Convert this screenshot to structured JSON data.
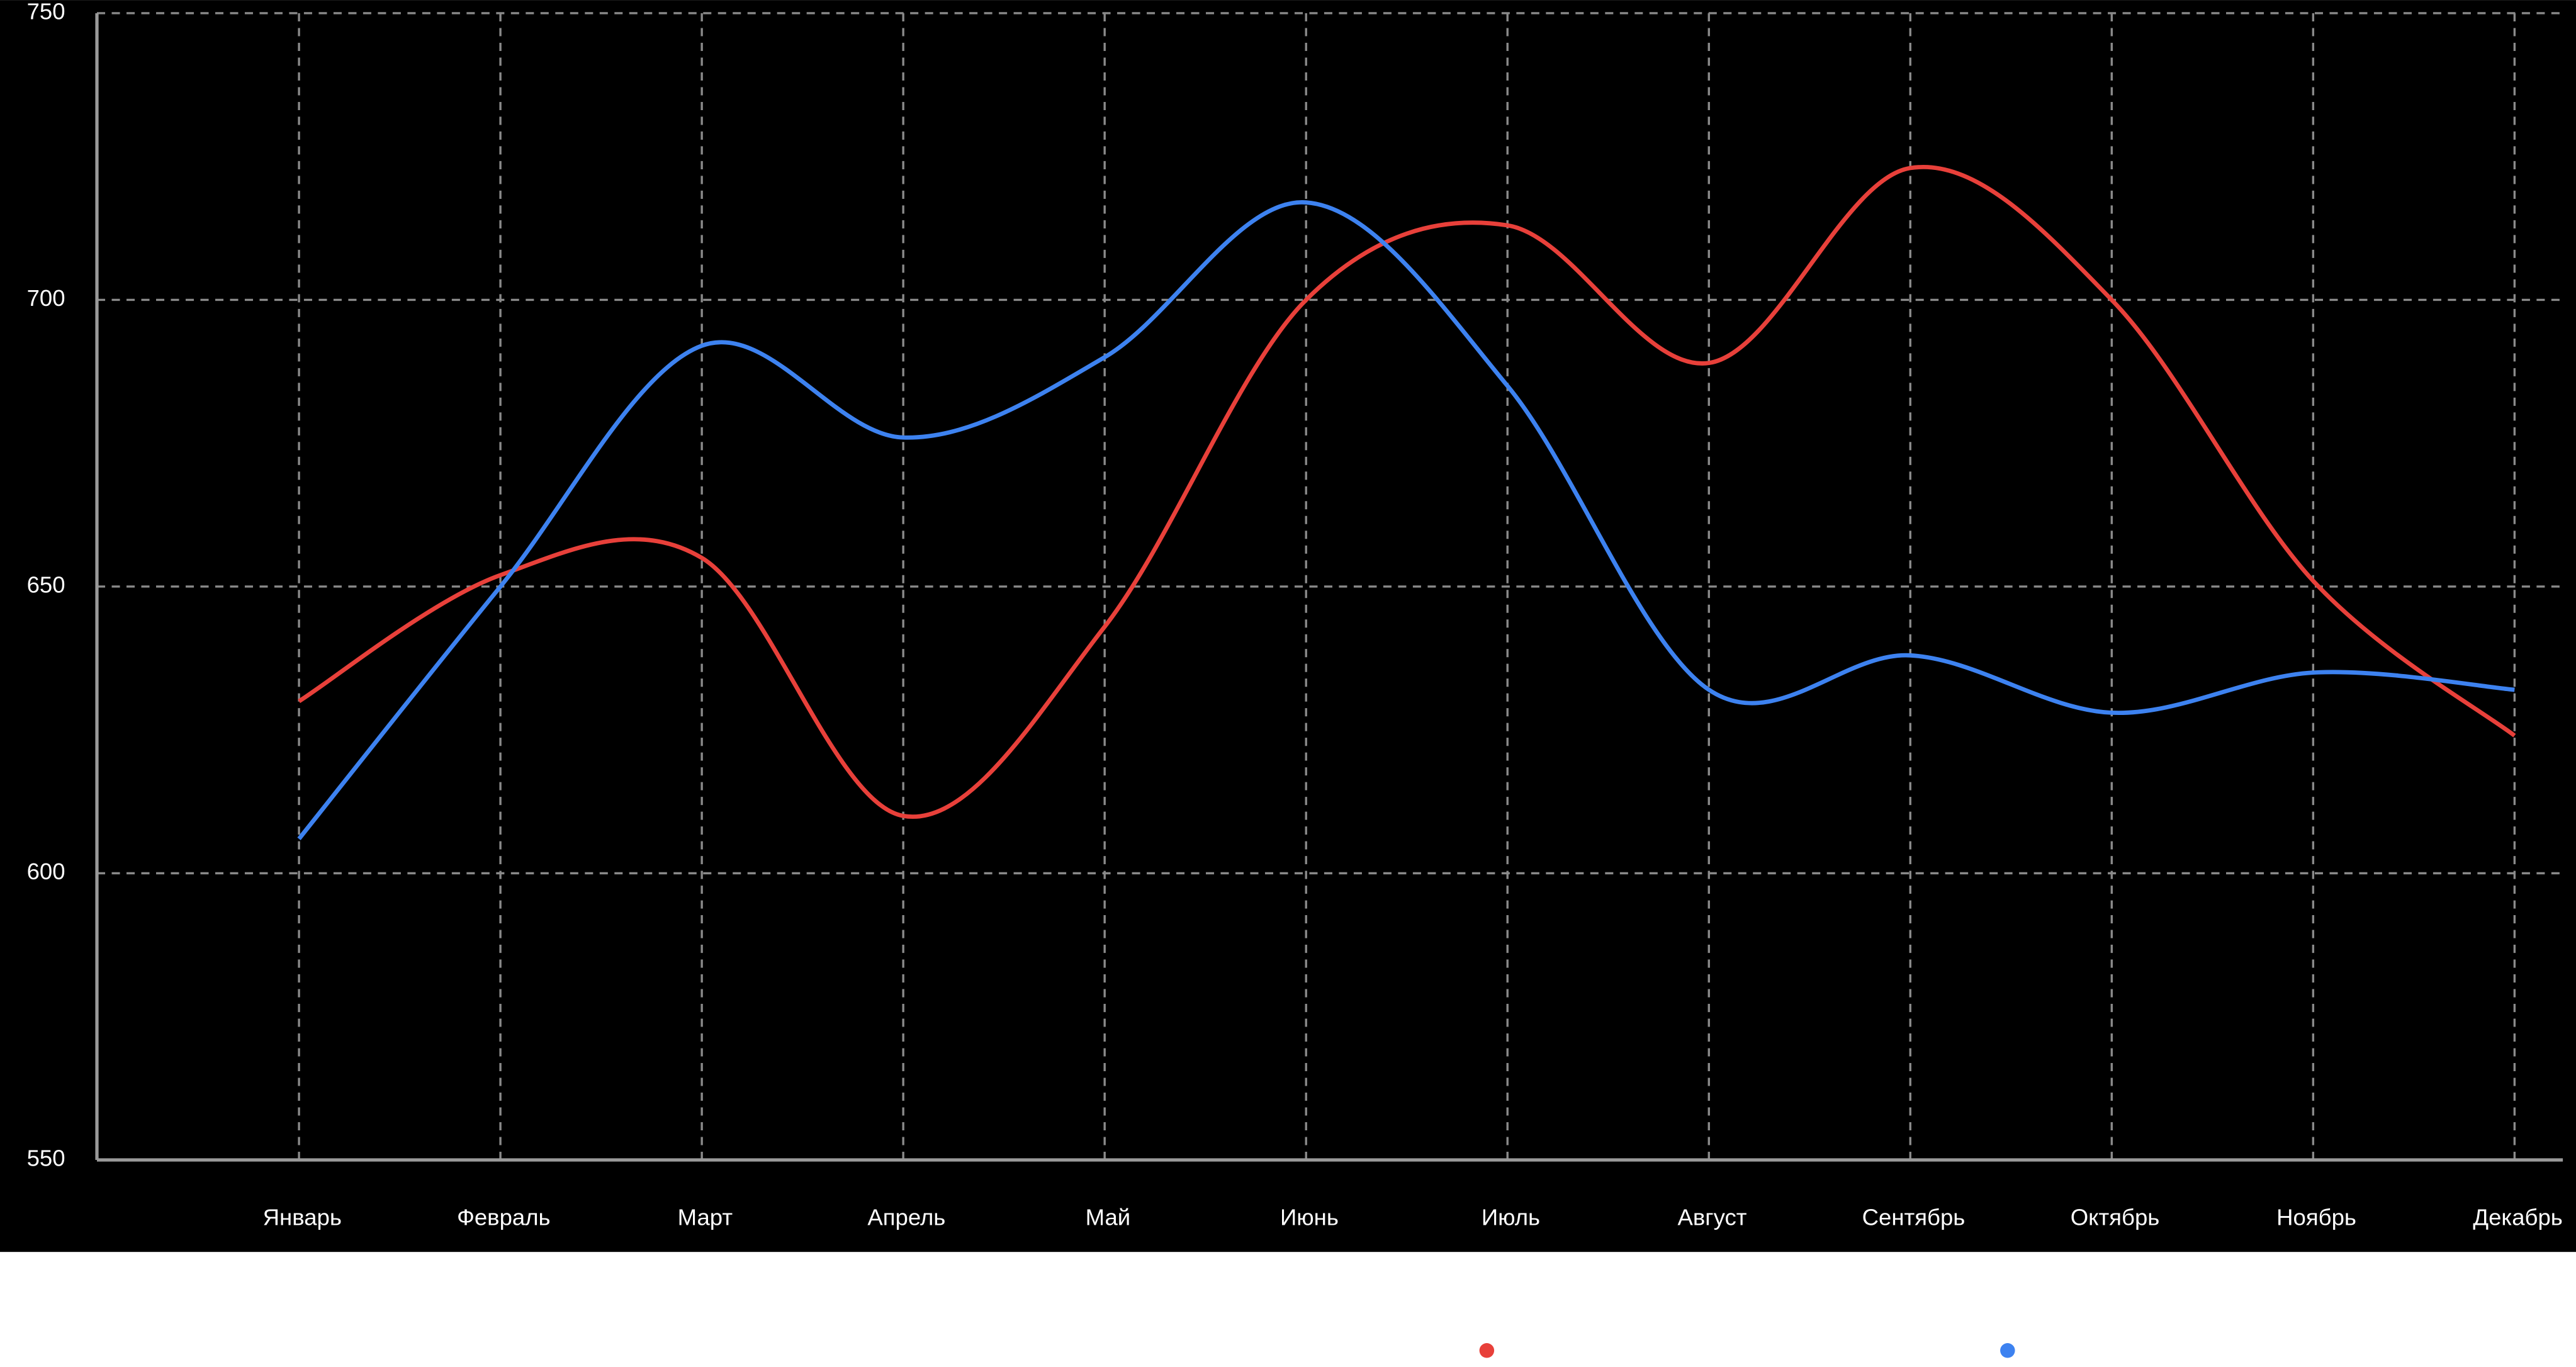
{
  "chart_data": {
    "type": "line",
    "categories": [
      "Январь",
      "Февраль",
      "Март",
      "Апрель",
      "Май",
      "Июнь",
      "Июль",
      "Август",
      "Сентябрь",
      "Октябрь",
      "Ноябрь",
      "Декабрь"
    ],
    "series": [
      {
        "color": "#e8403a",
        "values": [
          630,
          652,
          655,
          610,
          643,
          700,
          713,
          689,
          723,
          700,
          651,
          624
        ]
      },
      {
        "color": "#3d82f0",
        "values": [
          606,
          650,
          692,
          676,
          690,
          717,
          685,
          632,
          638,
          628,
          635,
          632
        ]
      }
    ],
    "ylim": [
      550,
      750
    ],
    "yticks": [
      550,
      600,
      650,
      700,
      750
    ],
    "grid": true
  }
}
